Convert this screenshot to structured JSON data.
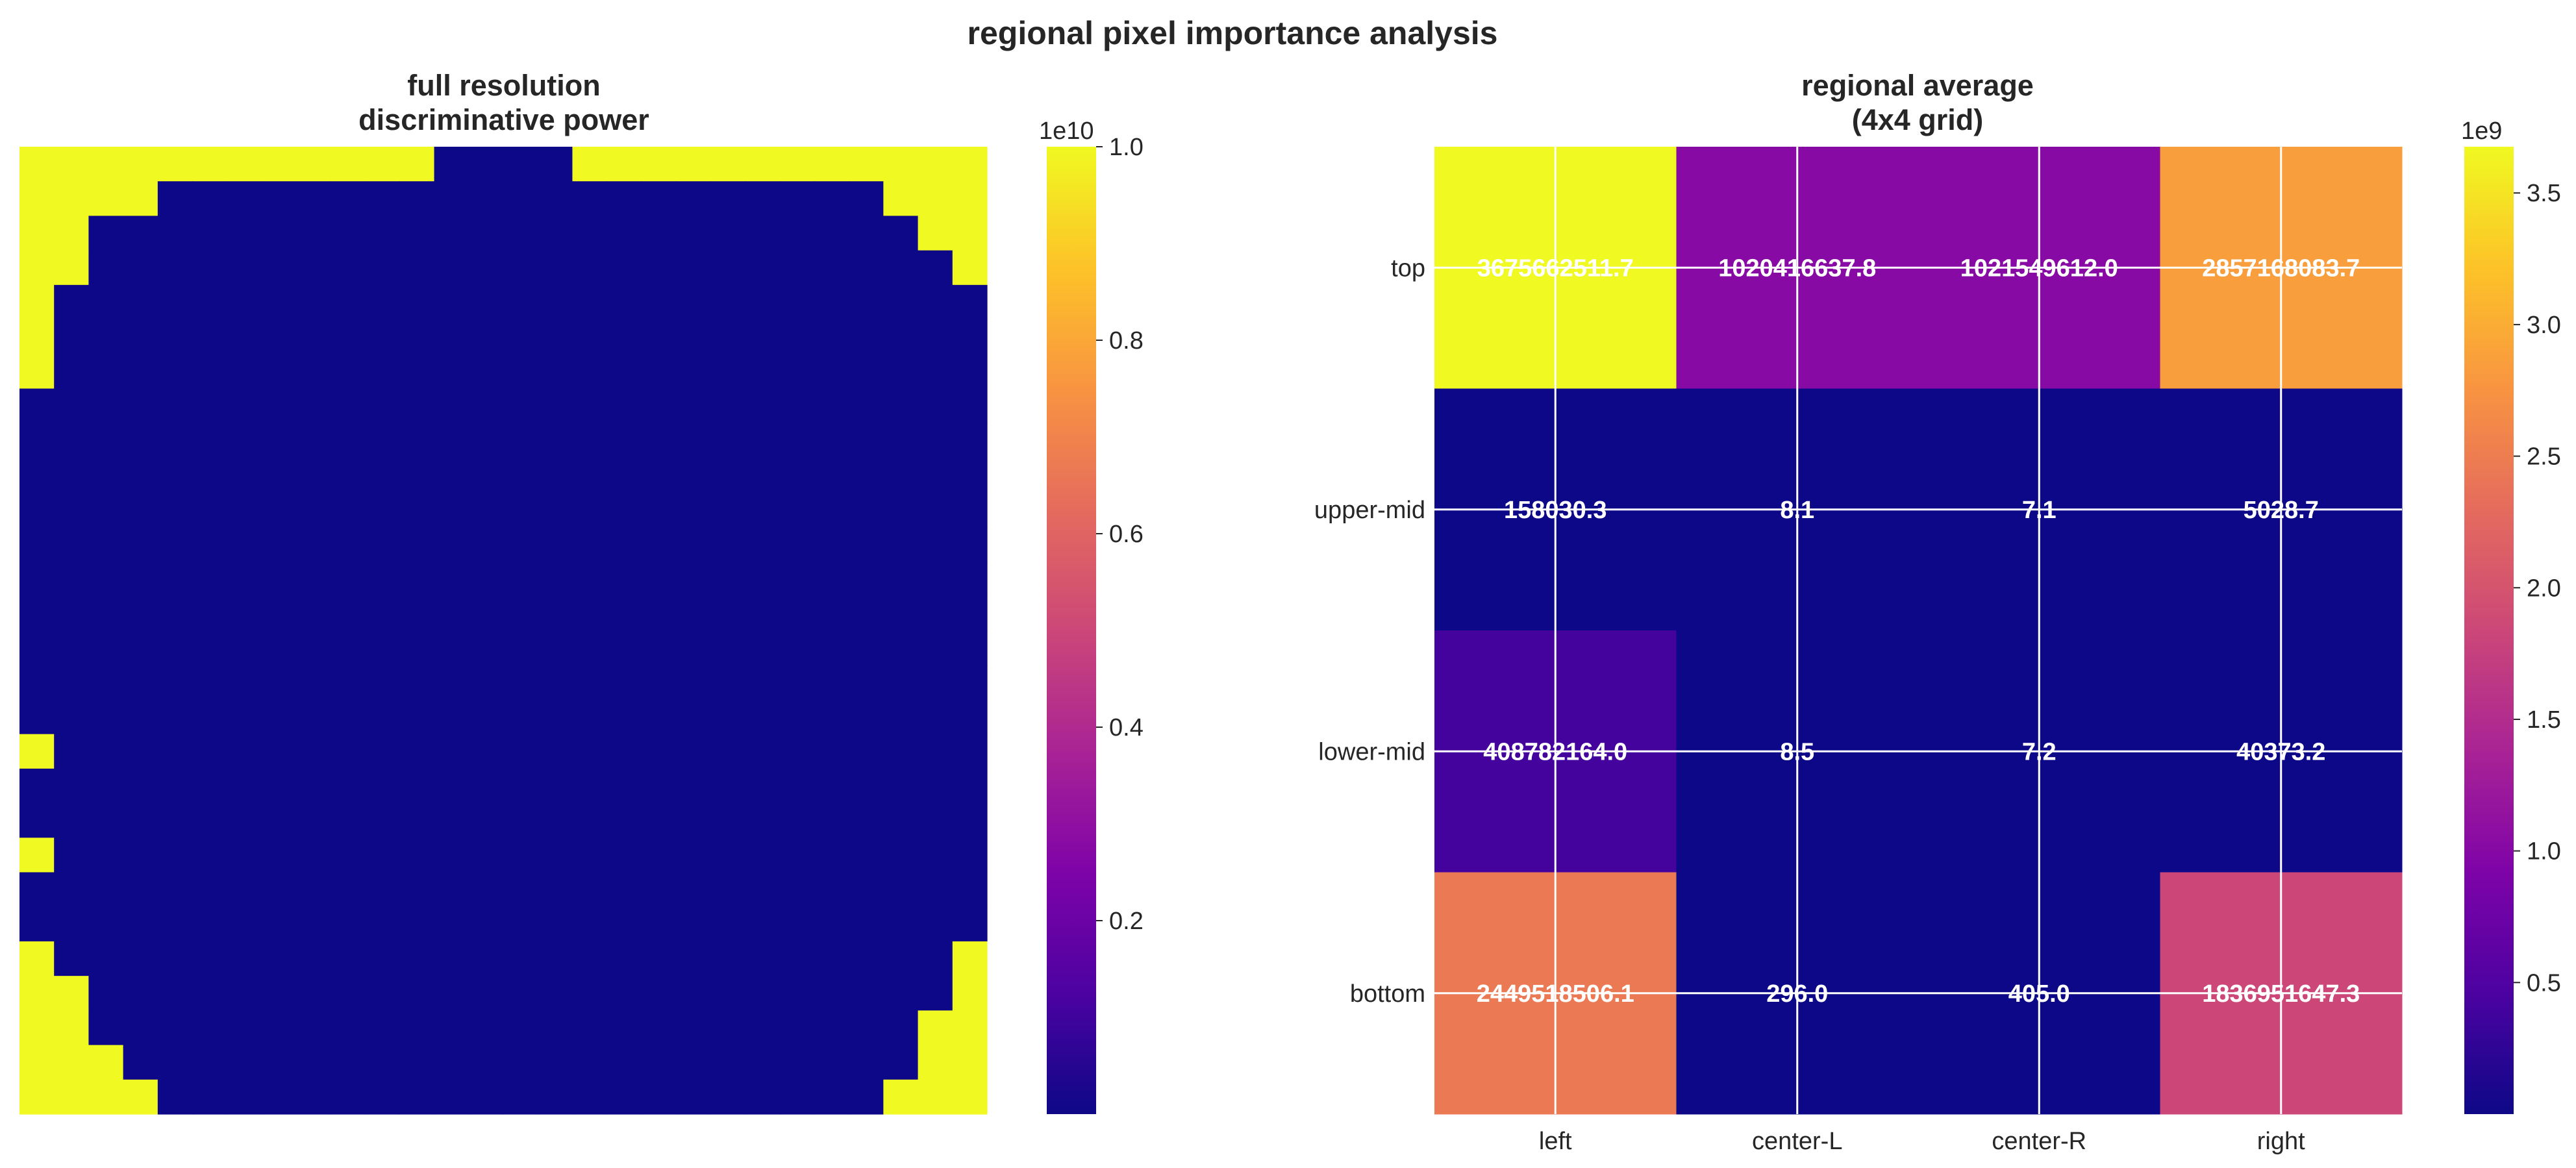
{
  "title": "regional pixel importance analysis",
  "colors": {
    "low": "#0d0887",
    "high": "#f0f921",
    "grid": "#ffffff",
    "text": "#262626"
  },
  "chart_data": [
    {
      "type": "heatmap",
      "title_lines": [
        "full resolution",
        "discriminative power"
      ],
      "colormap": "plasma",
      "rows": 28,
      "cols": 28,
      "axes_visible": false,
      "values_note": "binary map: 1e10 (yellow) on border region, ~0 (dark) inside",
      "mask": [
        "1111111111110000111111111111",
        "1111000000000000000000000111",
        "1100000000000000000000000011",
        "1100000000000000000000000001",
        "1000000000000000000000000000",
        "1000000000000000000000000000",
        "1000000000000000000000000000",
        "0000000000000000000000000000",
        "0000000000000000000000000000",
        "0000000000000000000000000000",
        "0000000000000000000000000000",
        "0000000000000000000000000000",
        "0000000000000000000000000000",
        "0000000000000000000000000000",
        "0000000000000000000000000000",
        "0000000000000000000000000000",
        "0000000000000000000000000000",
        "1000000000000000000000000000",
        "0000000000000000000000000000",
        "0000000000000000000000000000",
        "1000000000000000000000000000",
        "0000000000000000000000000000",
        "0000000000000000000000000000",
        "1000000000000000000000000001",
        "1100000000000000000000000001",
        "1100000000000000000000000011",
        "1110000000000000000000000011",
        "1111000000000000000000000111"
      ],
      "high_value": 10000000000,
      "colorbar": {
        "offset_label": "1e10",
        "ticks": [
          0.2,
          0.4,
          0.6,
          0.8,
          1.0
        ],
        "tick_labels": [
          "0.2",
          "0.4",
          "0.6",
          "0.8",
          "1.0"
        ],
        "vmin": 0,
        "vmax": 1.0
      }
    },
    {
      "type": "heatmap",
      "title_lines": [
        "regional average",
        "(4x4 grid)"
      ],
      "colormap": "plasma",
      "row_labels": [
        "top",
        "upper-mid",
        "lower-mid",
        "bottom"
      ],
      "col_labels": [
        "left",
        "center-L",
        "center-R",
        "right"
      ],
      "values": [
        [
          3675662511.7,
          1020416637.8,
          1021549612.0,
          2857168083.7
        ],
        [
          158030.3,
          8.1,
          7.1,
          5028.7
        ],
        [
          408782164.0,
          8.5,
          7.2,
          40373.2
        ],
        [
          2449518506.1,
          296.0,
          405.0,
          1836951647.3
        ]
      ],
      "cell_labels": [
        [
          "3675662511.7",
          "1020416637.8",
          "1021549612.0",
          "2857168083.7"
        ],
        [
          "158030.3",
          "8.1",
          "7.1",
          "5028.7"
        ],
        [
          "408782164.0",
          "8.5",
          "7.2",
          "40373.2"
        ],
        [
          "2449518506.1",
          "296.0",
          "405.0",
          "1836951647.3"
        ]
      ],
      "vmin": 0,
      "vmax": 3675662511.7,
      "grid": true,
      "colorbar": {
        "offset_label": "1e9",
        "ticks": [
          0.5,
          1.0,
          1.5,
          2.0,
          2.5,
          3.0,
          3.5
        ],
        "tick_labels": [
          "0.5",
          "1.0",
          "1.5",
          "2.0",
          "2.5",
          "3.0",
          "3.5"
        ],
        "vmin": 0,
        "vmax": 3.6757
      }
    }
  ]
}
